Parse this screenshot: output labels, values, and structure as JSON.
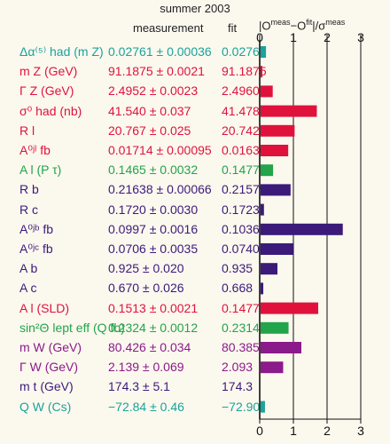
{
  "chart_data": {
    "type": "bar",
    "title": "summer 2003",
    "columns": {
      "measurement": "measurement",
      "fit": "fit"
    },
    "pull_header": {
      "text1": "|O",
      "sup1": "meas",
      "text2": "−O",
      "sup2": "fit",
      "text3": "|/σ",
      "sup3": "meas"
    },
    "xlim": [
      0,
      3
    ],
    "xticks": [
      "0",
      "1",
      "2",
      "3"
    ],
    "rows": [
      {
        "label": "Δα⁽⁵⁾ had (m Z)",
        "measurement": "0.02761 ± 0.00036",
        "fit": "0.02767",
        "pull": 0.16,
        "color": "#1aa39a"
      },
      {
        "label": "m Z (GeV)",
        "measurement": "91.1875 ± 0.0021",
        "fit": "91.1875",
        "pull": 0.02,
        "color": "#e0123c"
      },
      {
        "label": "Γ Z (GeV)",
        "measurement": "2.4952 ± 0.0023",
        "fit": "2.4960",
        "pull": 0.36,
        "color": "#e0123c"
      },
      {
        "label": "σ⁰ had (nb)",
        "measurement": "41.540 ± 0.037",
        "fit": "41.478",
        "pull": 1.67,
        "color": "#e0123c"
      },
      {
        "label": "R l",
        "measurement": "20.767 ± 0.025",
        "fit": "20.742",
        "pull": 1.01,
        "color": "#e0123c"
      },
      {
        "label": "A⁰ʲˡ fb",
        "measurement": "0.01714 ± 0.00095",
        "fit": "0.01636",
        "pull": 0.82,
        "color": "#e0123c"
      },
      {
        "label": "A l (P τ)",
        "measurement": "0.1465 ± 0.0032",
        "fit": "0.1477",
        "pull": 0.37,
        "color": "#22a44a"
      },
      {
        "label": "R b",
        "measurement": "0.21638 ± 0.00066",
        "fit": "0.21579",
        "pull": 0.89,
        "color": "#3b1a7a"
      },
      {
        "label": "R c",
        "measurement": "0.1720 ± 0.0030",
        "fit": "0.1723",
        "pull": 0.1,
        "color": "#3b1a7a"
      },
      {
        "label": "A⁰ʲᵇ fb",
        "measurement": "0.0997 ± 0.0016",
        "fit": "0.1036",
        "pull": 2.44,
        "color": "#3b1a7a"
      },
      {
        "label": "A⁰ʲᶜ fb",
        "measurement": "0.0706 ± 0.0035",
        "fit": "0.0740",
        "pull": 0.97,
        "color": "#3b1a7a"
      },
      {
        "label": "A b",
        "measurement": "0.925 ± 0.020",
        "fit": "0.935",
        "pull": 0.5,
        "color": "#3b1a7a"
      },
      {
        "label": "A c",
        "measurement": "0.670 ± 0.026",
        "fit": "0.668",
        "pull": 0.08,
        "color": "#3b1a7a"
      },
      {
        "label": "A l (SLD)",
        "measurement": "0.1513 ± 0.0021",
        "fit": "0.1477",
        "pull": 1.71,
        "color": "#e0123c"
      },
      {
        "label": "sin²Θ lept eff (Q fb)",
        "measurement": "0.2324 ± 0.0012",
        "fit": "0.2314",
        "pull": 0.83,
        "color": "#22a44a"
      },
      {
        "label": "m W (GeV)",
        "measurement": "80.426 ± 0.034",
        "fit": "80.385",
        "pull": 1.21,
        "color": "#8b1a8a"
      },
      {
        "label": "Γ W (GeV)",
        "measurement": "2.139 ± 0.069",
        "fit": "2.093",
        "pull": 0.67,
        "color": "#8b1a8a"
      },
      {
        "label": "m t (GeV)",
        "measurement": "174.3 ± 5.1",
        "fit": "174.3",
        "pull": 0.0,
        "color": "#3b1a7a"
      },
      {
        "label": "Q W (Cs)",
        "measurement": "−72.84 ± 0.46",
        "fit": "−72.90",
        "pull": 0.13,
        "color": "#1aa39a"
      }
    ]
  }
}
